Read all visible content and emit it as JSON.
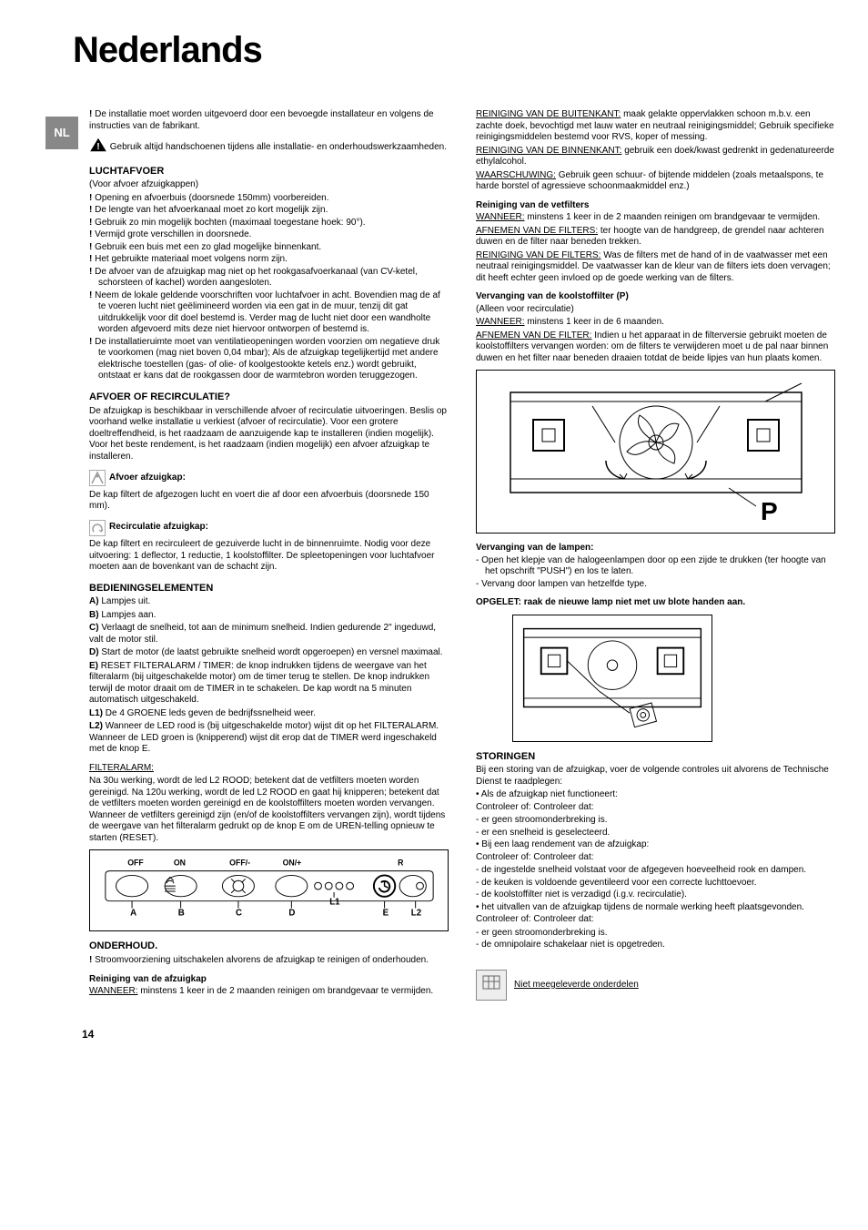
{
  "title": "Nederlands",
  "lang_tab": "NL",
  "page_number": "14",
  "left": {
    "intro_warn": "De installatie moet worden uitgevoerd door een bevoegde installateur en volgens de instructies van de fabrikant.",
    "gloves": "Gebruik altijd handschoenen tijdens alle installatie- en onderhoudswerkzaamheden.",
    "luchtafvoer_h": "LUCHTAFVOER",
    "luchtafvoer_sub": "(Voor afvoer afzuigkappen)",
    "luchtafvoer_items": [
      "Opening en afvoerbuis (doorsnede 150mm) voorbereiden.",
      "De lengte van het afvoerkanaal moet zo kort mogelijk zijn.",
      "Gebruik zo min mogelijk bochten (maximaal toegestane hoek: 90°).",
      "Vermijd grote verschillen in doorsnede.",
      "Gebruik een buis met een zo glad mogelijke binnenkant.",
      "Het gebruikte materiaal moet volgens norm zijn.",
      "De afvoer van de afzuigkap mag niet op het rookgasafvoerkanaal (van CV-ketel, schorsteen of kachel) worden aangesloten.",
      "Neem de lokale geldende voorschriften voor luchtafvoer in acht. Bovendien mag de af te voeren lucht niet geëlimineerd worden via een gat in de muur, tenzij dit gat uitdrukkelijk voor dit doel bestemd is. Verder mag de lucht niet door een wandholte worden afgevoerd mits deze niet hiervoor ontworpen of bestemd is.",
      "De installatieruimte moet van ventilatieopeningen worden voorzien om negatieve druk te voorkomen (mag niet boven 0,04 mbar); Als de afzuigkap tegelijkertijd met andere elektrische toestellen (gas- of olie- of koolgestookte ketels enz.) wordt gebruikt, ontstaat er kans dat de rookgassen door de warmtebron worden teruggezogen."
    ],
    "afvoer_h": "AFVOER OF RECIRCULATIE?",
    "afvoer_p": "De afzuigkap is beschikbaar in verschillende afvoer of recirculatie uitvoeringen. Beslis op voorhand welke installatie u verkiest (afvoer of recirculatie). Voor een grotere doeltreffendheid, is het raadzaam de aanzuigende kap te installeren (indien mogelijk). Voor het beste rendement, is het raadzaam (indien mogelijk) een afvoer afzuigkap te installeren.",
    "afvoer_sub1": "Afvoer afzuigkap:",
    "afvoer_sub1_p": "De kap filtert de afgezogen lucht en voert die af door een afvoerbuis (doorsnede 150 mm).",
    "afvoer_sub2": "Recirculatie afzuigkap:",
    "afvoer_sub2_p": "De kap filtert en recirculeert de gezuiverde lucht in de binnenruimte. Nodig voor deze uitvoering: 1 deflector, 1 reductie, 1 koolstoffilter. De spleetopeningen voor luchtafvoer moeten aan de bovenkant van de schacht zijn.",
    "bediening_h": "BEDIENINGSELEMENTEN",
    "bediening_items": {
      "A": "Lampjes uit.",
      "B": "Lampjes aan.",
      "C": "Verlaagt de snelheid, tot aan de minimum snelheid. Indien gedurende 2\" ingeduwd, valt de motor stil.",
      "D": "Start de motor (de laatst gebruikte snelheid wordt opgeroepen) en versnel maximaal.",
      "E": "RESET FILTERALARM / TIMER: de knop indrukken tijdens de weergave van het filteralarm (bij uitgeschakelde motor) om de timer terug te stellen. De knop indrukken terwijl de motor draait om de TIMER in te schakelen. De kap wordt na 5 minuten automatisch uitgeschakeld.",
      "L1": "De 4 GROENE leds geven de bedrijfssnelheid weer.",
      "L2": "Wanneer de LED rood is (bij uitgeschakelde motor) wijst dit op het FILTERALARM. Wanneer de LED groen is (knipperend) wijst dit erop dat de TIMER werd ingeschakeld met de knop E."
    },
    "filteralarm_h": "FILTERALARM:",
    "filteralarm_p": "Na 30u werking, wordt de led L2 ROOD; betekent dat de vetfilters moeten worden gereinigd. Na 120u werking, wordt de led L2 ROOD en gaat hij knipperen; betekent dat de vetfilters moeten worden gereinigd en de koolstoffilters moeten worden vervangen. Wanneer de vetfilters gereinigd zijn (en/of de koolstoffilters vervangen zijn), wordt tijdens de weergave van het filteralarm gedrukt op de knop E om de UREN-telling opnieuw te starten (RESET).",
    "panel_labels": {
      "off": "OFF",
      "on": "ON",
      "offm": "OFF/-",
      "onp": "ON/+",
      "r": "R",
      "a": "A",
      "b": "B",
      "c": "C",
      "d": "D",
      "l1": "L1",
      "e": "E",
      "l2": "L2"
    },
    "onderhoud_h": "ONDERHOUD.",
    "onderhoud_item": "Stroomvoorziening uitschakelen alvorens de afzuigkap te reinigen of onderhouden.",
    "reiniging_h": "Reiniging van de afzuigkap",
    "reiniging_wanneer": "minstens 1 keer in de 2 maanden reinigen om brandgevaar te vermijden."
  },
  "right": {
    "buitenkant": "maak gelakte oppervlakken schoon m.b.v. een zachte doek, bevochtigd met lauw water en neutraal reinigingsmiddel; Gebruik specifieke reinigingsmiddelen bestemd voor RVS, koper of messing.",
    "binnenkant": "gebruik een doek/kwast gedrenkt in gedenatureerde ethylalcohol.",
    "waarschuwing": "Gebruik geen schuur- of bijtende middelen (zoals metaalspons, te harde borstel of agressieve schoonmaakmiddel enz.)",
    "vetfilters_h": "Reiniging van de vetfilters",
    "vet_wanneer": "minstens 1 keer in de 2 maanden reinigen om brandgevaar te vermijden.",
    "vet_afnemen": "ter hoogte van de handgreep, de grendel naar achteren duwen en de filter naar beneden trekken.",
    "vet_reinigen": "Was de filters met de hand of in de vaatwasser met een neutraal reinigingsmiddel. De vaatwasser kan de kleur van de filters iets doen vervagen; dit heeft echter geen invloed op de goede werking van de filters.",
    "kool_h": "Vervanging van de koolstoffilter (P)",
    "kool_sub": "(Alleen voor recirculatie)",
    "kool_wanneer": "minstens 1 keer in de 6 maanden.",
    "kool_afnemen": "Indien u het apparaat in de filterversie gebruikt moeten de koolstoffilters vervangen worden: om de filters te verwijderen moet u de pal naar binnen duwen en het filter naar beneden draaien totdat de beide lipjes van hun plaats komen.",
    "fig_p": "P",
    "lampen_h": "Vervanging van de lampen:",
    "lampen_items": [
      "Open het klepje van de halogeenlampen door op een zijde te drukken (ter hoogte van het opschrift \"PUSH\") en los te laten.",
      "Vervang door lampen van hetzelfde type."
    ],
    "opgelet": "OPGELET: raak de nieuwe lamp niet met uw blote handen aan.",
    "storingen_h": "STORINGEN",
    "storingen_intro": "Bij een storing van de afzuigkap, voer de volgende controles uit alvorens de Technische Dienst te raadplegen:",
    "st_b1": "Als de afzuigkap niet functioneert:",
    "st_c1": "Controleer of: Controleer dat:",
    "st_l1": [
      "er geen stroomonderbreking is.",
      "er een snelheid is geselecteerd."
    ],
    "st_b2": "Bij een laag rendement van de afzuigkap:",
    "st_c2": "Controleer of: Controleer dat:",
    "st_l2": [
      "de ingestelde snelheid volstaat voor de afgegeven hoeveelheid rook en dampen.",
      "de keuken is voldoende geventileerd voor een correcte luchttoevoer.",
      "de koolstoffilter niet is verzadigd (i.g.v. recirculatie)."
    ],
    "st_b3": "het uitvallen van de afzuigkap tijdens de normale werking heeft plaatsgevonden.",
    "st_c3": "Controleer of: Controleer dat:",
    "st_l3": [
      "er geen stroomonderbreking is.",
      "de omnipolaire schakelaar niet is opgetreden."
    ],
    "niet_meegeleverd": "Niet meegeleverde onderdelen"
  }
}
